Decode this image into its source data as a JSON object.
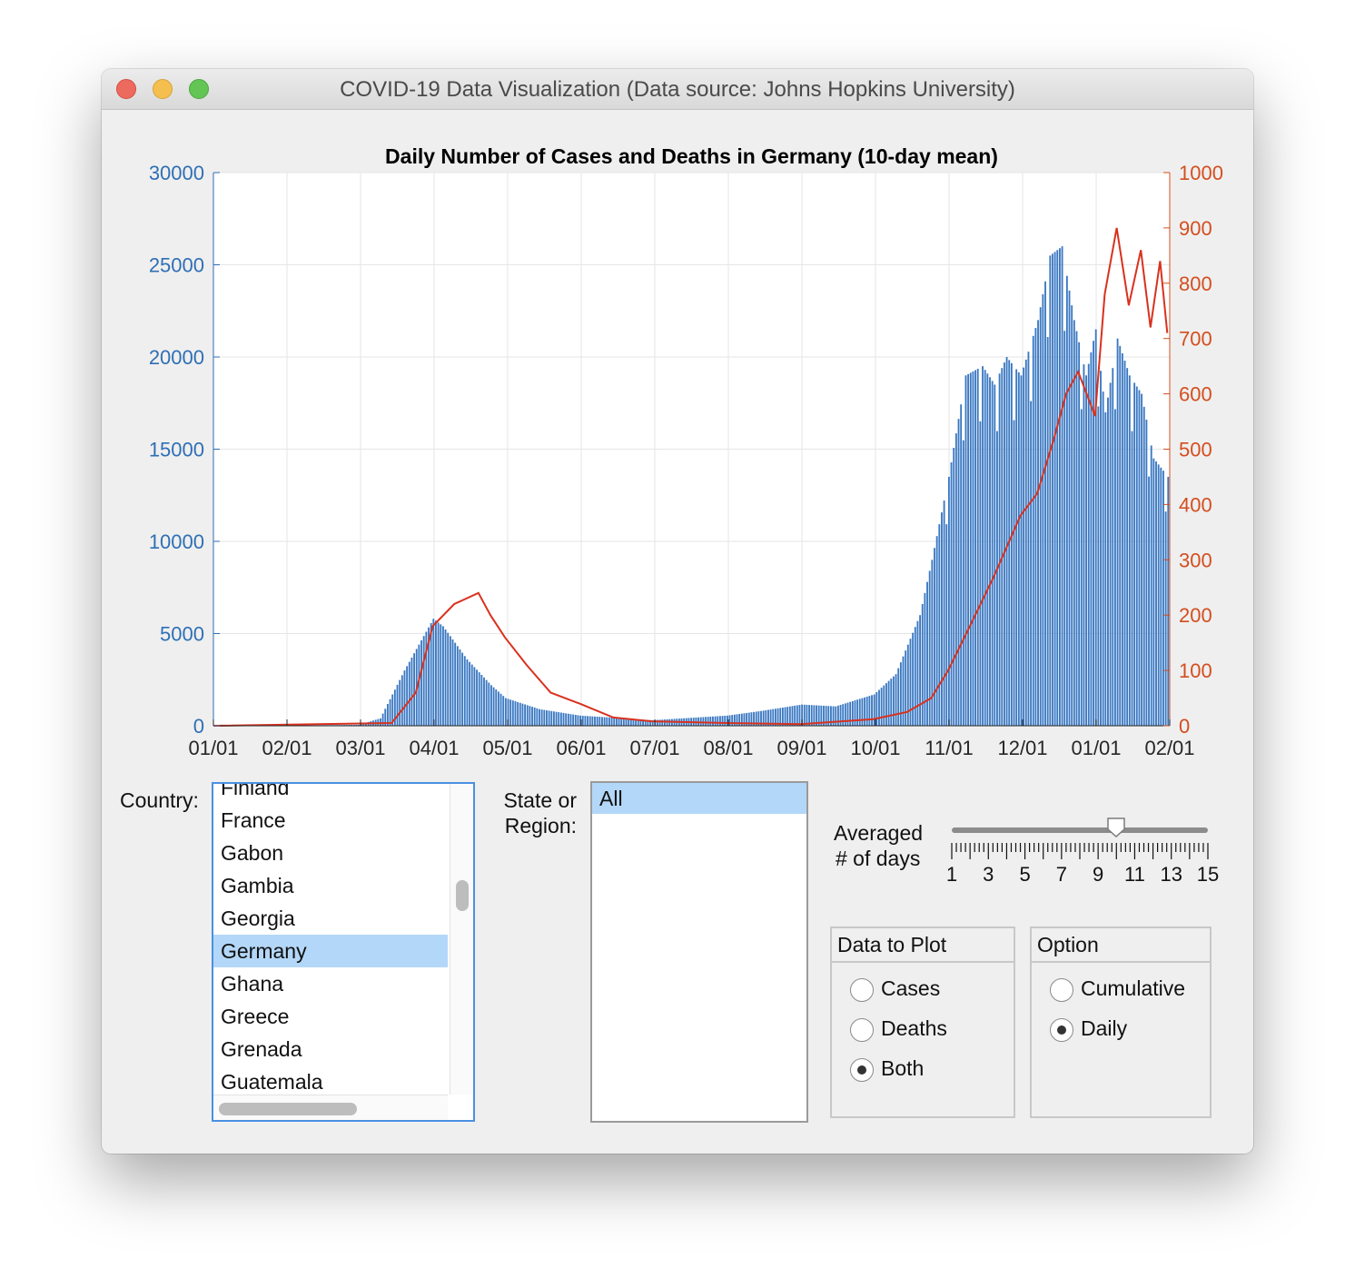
{
  "window": {
    "title": "COVID-19 Data Visualization (Data source: Johns Hopkins University)"
  },
  "chart_data": {
    "type": "bar+line",
    "title": "Daily Number of Cases and Deaths in Germany (10-day mean)",
    "xlabel": "",
    "x_ticks": [
      "01/01",
      "02/01",
      "03/01",
      "04/01",
      "05/01",
      "06/01",
      "07/01",
      "08/01",
      "09/01",
      "10/01",
      "11/01",
      "12/01",
      "01/01",
      "02/01"
    ],
    "y_left": {
      "label": "",
      "range": [
        0,
        30000
      ],
      "ticks": [
        0,
        5000,
        10000,
        15000,
        20000,
        25000,
        30000
      ],
      "color": "#2e6fb5"
    },
    "y_right": {
      "label": "",
      "range": [
        0,
        1000
      ],
      "ticks": [
        0,
        100,
        200,
        300,
        400,
        500,
        600,
        700,
        800,
        900,
        1000
      ],
      "color": "#d44e1e"
    },
    "grid": true,
    "series": [
      {
        "type": "bar",
        "axis": "left",
        "color": "#3a78c2",
        "x": [
          "2020-01-01",
          "2020-03-01",
          "2020-03-10",
          "2020-03-20",
          "2020-04-01",
          "2020-04-05",
          "2020-04-15",
          "2020-04-25",
          "2020-05-01",
          "2020-05-15",
          "2020-06-01",
          "2020-07-01",
          "2020-08-01",
          "2020-08-15",
          "2020-09-01",
          "2020-09-15",
          "2020-10-01",
          "2020-10-10",
          "2020-10-20",
          "2020-10-25",
          "2020-11-01",
          "2020-11-08",
          "2020-11-15",
          "2020-11-20",
          "2020-11-25",
          "2020-12-01",
          "2020-12-08",
          "2020-12-13",
          "2020-12-18",
          "2020-12-23",
          "2020-12-28",
          "2021-01-01",
          "2021-01-05",
          "2021-01-10",
          "2021-01-15",
          "2021-01-20",
          "2021-01-25",
          "2021-01-31"
        ],
        "values": [
          0,
          50,
          400,
          3000,
          5800,
          5400,
          3600,
          2200,
          1500,
          900,
          550,
          300,
          550,
          800,
          1150,
          1050,
          1700,
          2800,
          6000,
          9000,
          13500,
          19000,
          19500,
          18500,
          20000,
          19000,
          22000,
          25500,
          26000,
          22000,
          19000,
          21500,
          17000,
          21000,
          19000,
          18000,
          14500,
          13500
        ]
      },
      {
        "type": "line",
        "axis": "right",
        "color": "#d9311e",
        "x": [
          "2020-01-01",
          "2020-03-15",
          "2020-03-25",
          "2020-04-01",
          "2020-04-10",
          "2020-04-20",
          "2020-04-25",
          "2020-05-01",
          "2020-05-10",
          "2020-05-20",
          "2020-06-01",
          "2020-06-15",
          "2020-07-01",
          "2020-08-01",
          "2020-09-01",
          "2020-10-01",
          "2020-10-15",
          "2020-10-25",
          "2020-11-01",
          "2020-11-10",
          "2020-11-20",
          "2020-12-01",
          "2020-12-08",
          "2020-12-15",
          "2020-12-20",
          "2020-12-25",
          "2021-01-01",
          "2021-01-05",
          "2021-01-10",
          "2021-01-15",
          "2021-01-20",
          "2021-01-24",
          "2021-01-28",
          "2021-01-31"
        ],
        "values": [
          0,
          5,
          60,
          180,
          220,
          240,
          200,
          160,
          110,
          60,
          40,
          15,
          8,
          5,
          3,
          12,
          25,
          50,
          100,
          180,
          270,
          380,
          420,
          520,
          600,
          640,
          560,
          780,
          900,
          760,
          860,
          720,
          840,
          710
        ]
      }
    ]
  },
  "country": {
    "label": "Country:",
    "items": [
      "Finland",
      "France",
      "Gabon",
      "Gambia",
      "Georgia",
      "Germany",
      "Ghana",
      "Greece",
      "Grenada",
      "Guatemala"
    ],
    "selected": "Germany"
  },
  "region": {
    "label_line1": "State or",
    "label_line2": "Region:",
    "items": [
      "All"
    ],
    "selected": "All"
  },
  "averaging": {
    "label_line1": "Averaged",
    "label_line2": "# of days",
    "min": 1,
    "max": 15,
    "value": 10,
    "tick_labels": [
      "1",
      "3",
      "5",
      "7",
      "9",
      "11",
      "13",
      "15"
    ]
  },
  "data_to_plot": {
    "title": "Data to Plot",
    "options": [
      "Cases",
      "Deaths",
      "Both"
    ],
    "selected": "Both"
  },
  "option": {
    "title": "Option",
    "options": [
      "Cumulative",
      "Daily"
    ],
    "selected": "Daily"
  }
}
